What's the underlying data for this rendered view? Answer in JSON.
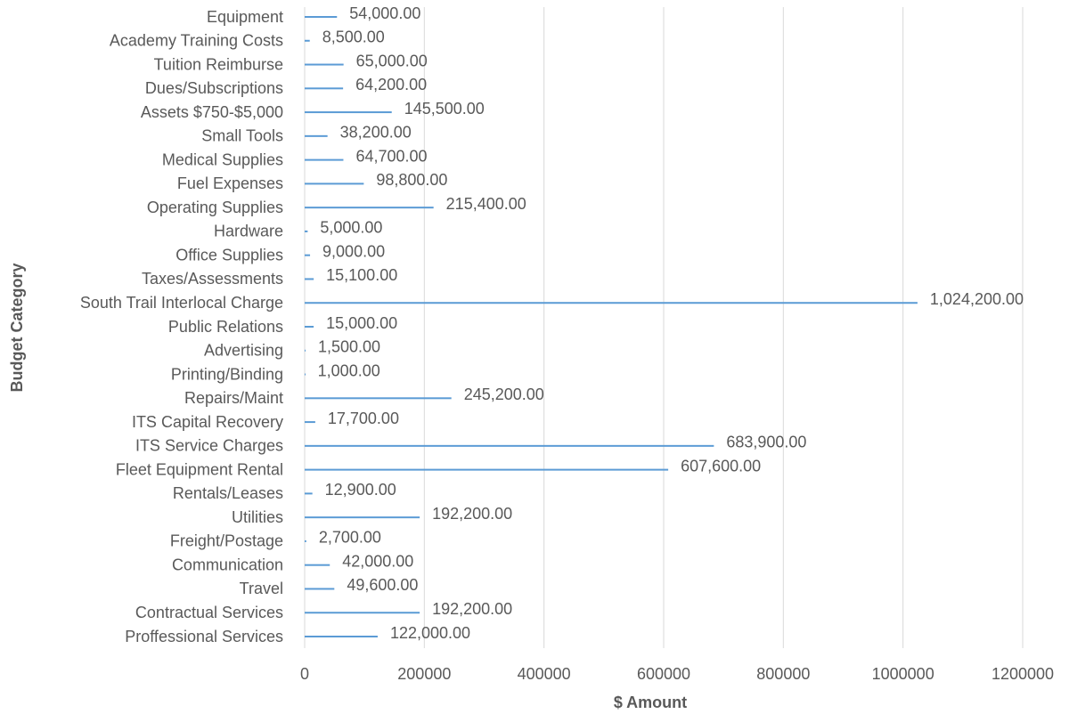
{
  "chart_data": {
    "type": "hbar",
    "xlabel": "$ Amount",
    "ylabel": "Budget Category",
    "categories": [
      "Equipment",
      "Academy Training Costs",
      "Tuition Reimburse",
      "Dues/Subscriptions",
      "Assets $750-$5,000",
      "Small Tools",
      "Medical Supplies",
      "Fuel Expenses",
      "Operating Supplies",
      "Hardware",
      "Office Supplies",
      "Taxes/Assessments",
      "South Trail Interlocal Charge",
      "Public Relations",
      "Advertising",
      "Printing/Binding",
      "Repairs/Maint",
      "ITS Capital Recovery",
      "ITS Service Charges",
      "Fleet Equipment Rental",
      "Rentals/Leases",
      "Utilities",
      "Freight/Postage",
      "Communication",
      "Travel",
      "Contractual Services",
      "Proffessional Services"
    ],
    "values": [
      54000,
      8500,
      65000,
      64200,
      145500,
      38200,
      64700,
      98800,
      215400,
      5000,
      9000,
      15100,
      1024200,
      15000,
      1500,
      1000,
      245200,
      17700,
      683900,
      607600,
      12900,
      192200,
      2700,
      42000,
      49600,
      192200,
      122000
    ],
    "value_labels": [
      "54,000.00",
      "8,500.00",
      "65,000.00",
      "64,200.00",
      "145,500.00",
      "38,200.00",
      "64,700.00",
      "98,800.00",
      "215,400.00",
      "5,000.00",
      "9,000.00",
      "15,100.00",
      "1,024,200.00",
      "15,000.00",
      "1,500.00",
      "1,000.00",
      "245,200.00",
      "17,700.00",
      "683,900.00",
      "607,600.00",
      "12,900.00",
      "192,200.00",
      "2,700.00",
      "42,000.00",
      "49,600.00",
      "192,200.00",
      "122,000.00"
    ],
    "color": "#5b9bd5",
    "xlim": [
      0,
      1200000
    ],
    "xticks": [
      0,
      200000,
      400000,
      600000,
      800000,
      1000000,
      1200000
    ],
    "grid": true
  }
}
